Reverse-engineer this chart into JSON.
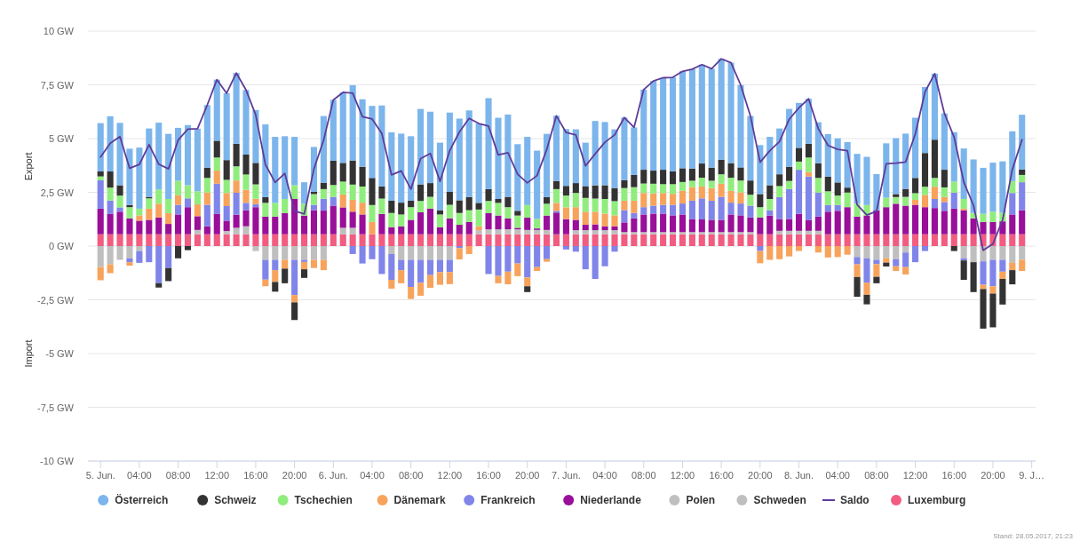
{
  "chart_data": {
    "type": "bar",
    "stacked": true,
    "ylabel": "Export",
    "annotations": [
      "Import",
      "Stand: 28.05.2017, 21:23"
    ],
    "x": [
      "2017-06-05T00:00",
      "2017-06-05T01:00",
      "2017-06-05T02:00",
      "2017-06-05T03:00",
      "2017-06-05T04:00",
      "2017-06-05T05:00",
      "2017-06-05T06:00",
      "2017-06-05T07:00",
      "2017-06-05T08:00",
      "2017-06-05T09:00",
      "2017-06-05T10:00",
      "2017-06-05T11:00",
      "2017-06-05T12:00",
      "2017-06-05T13:00",
      "2017-06-05T14:00",
      "2017-06-05T15:00",
      "2017-06-05T16:00",
      "2017-06-05T17:00",
      "2017-06-05T18:00",
      "2017-06-05T19:00",
      "2017-06-05T20:00",
      "2017-06-05T21:00",
      "2017-06-05T22:00",
      "2017-06-05T23:00",
      "2017-06-06T00:00",
      "2017-06-06T01:00",
      "2017-06-06T02:00",
      "2017-06-06T03:00",
      "2017-06-06T04:00",
      "2017-06-06T05:00",
      "2017-06-06T06:00",
      "2017-06-06T07:00",
      "2017-06-06T08:00",
      "2017-06-06T09:00",
      "2017-06-06T10:00",
      "2017-06-06T11:00",
      "2017-06-06T12:00",
      "2017-06-06T13:00",
      "2017-06-06T14:00",
      "2017-06-06T15:00",
      "2017-06-06T16:00",
      "2017-06-06T17:00",
      "2017-06-06T18:00",
      "2017-06-06T19:00",
      "2017-06-06T20:00",
      "2017-06-06T21:00",
      "2017-06-06T22:00",
      "2017-06-06T23:00",
      "2017-06-07T00:00",
      "2017-06-07T01:00",
      "2017-06-07T02:00",
      "2017-06-07T03:00",
      "2017-06-07T04:00",
      "2017-06-07T05:00",
      "2017-06-07T06:00",
      "2017-06-07T07:00",
      "2017-06-07T08:00",
      "2017-06-07T09:00",
      "2017-06-07T10:00",
      "2017-06-07T11:00",
      "2017-06-07T12:00",
      "2017-06-07T13:00",
      "2017-06-07T14:00",
      "2017-06-07T15:00",
      "2017-06-07T16:00",
      "2017-06-07T17:00",
      "2017-06-07T18:00",
      "2017-06-07T19:00",
      "2017-06-07T20:00",
      "2017-06-07T21:00",
      "2017-06-07T22:00",
      "2017-06-07T23:00",
      "2017-06-08T00:00",
      "2017-06-08T01:00",
      "2017-06-08T02:00",
      "2017-06-08T03:00",
      "2017-06-08T04:00",
      "2017-06-08T05:00",
      "2017-06-08T06:00",
      "2017-06-08T07:00",
      "2017-06-08T08:00",
      "2017-06-08T09:00",
      "2017-06-08T10:00",
      "2017-06-08T11:00",
      "2017-06-08T12:00",
      "2017-06-08T13:00",
      "2017-06-08T14:00",
      "2017-06-08T15:00",
      "2017-06-08T16:00",
      "2017-06-08T17:00",
      "2017-06-08T18:00",
      "2017-06-08T19:00",
      "2017-06-08T20:00",
      "2017-06-08T21:00",
      "2017-06-08T22:00",
      "2017-06-08T23:00"
    ],
    "xlim": [
      "2017-06-04T22:42",
      "2017-06-09T00:24"
    ],
    "xticks": [
      {
        "value": "2017-06-05T00:00",
        "label": "5. Jun."
      },
      {
        "value": "2017-06-05T04:00",
        "label": "04:00"
      },
      {
        "value": "2017-06-05T08:00",
        "label": "08:00"
      },
      {
        "value": "2017-06-05T12:00",
        "label": "12:00"
      },
      {
        "value": "2017-06-05T16:00",
        "label": "16:00"
      },
      {
        "value": "2017-06-05T20:00",
        "label": "20:00"
      },
      {
        "value": "2017-06-06T00:00",
        "label": "6. Jun."
      },
      {
        "value": "2017-06-06T04:00",
        "label": "04:00"
      },
      {
        "value": "2017-06-06T08:00",
        "label": "08:00"
      },
      {
        "value": "2017-06-06T12:00",
        "label": "12:00"
      },
      {
        "value": "2017-06-06T16:00",
        "label": "16:00"
      },
      {
        "value": "2017-06-06T20:00",
        "label": "20:00"
      },
      {
        "value": "2017-06-07T00:00",
        "label": "7. Jun."
      },
      {
        "value": "2017-06-07T04:00",
        "label": "04:00"
      },
      {
        "value": "2017-06-07T08:00",
        "label": "08:00"
      },
      {
        "value": "2017-06-07T12:00",
        "label": "12:00"
      },
      {
        "value": "2017-06-07T16:00",
        "label": "16:00"
      },
      {
        "value": "2017-06-07T20:00",
        "label": "20:00"
      },
      {
        "value": "2017-06-08T00:00",
        "label": "8. Jun."
      },
      {
        "value": "2017-06-08T04:00",
        "label": "04:00"
      },
      {
        "value": "2017-06-08T08:00",
        "label": "08:00"
      },
      {
        "value": "2017-06-08T12:00",
        "label": "12:00"
      },
      {
        "value": "2017-06-08T16:00",
        "label": "16:00"
      },
      {
        "value": "2017-06-08T20:00",
        "label": "20:00"
      },
      {
        "value": "2017-06-09T00:00",
        "label": "9. J…"
      }
    ],
    "ylim": [
      -10,
      10
    ],
    "yticks": [
      {
        "value": -10,
        "label": "-10 GW"
      },
      {
        "value": -7.5,
        "label": "-7,5 GW"
      },
      {
        "value": -5,
        "label": "-5 GW"
      },
      {
        "value": -2.5,
        "label": "-2,5 GW"
      },
      {
        "value": 0,
        "label": "0 GW"
      },
      {
        "value": 2.5,
        "label": "2,5 GW"
      },
      {
        "value": 5,
        "label": "5 GW"
      },
      {
        "value": 7.5,
        "label": "7,5 GW"
      },
      {
        "value": 10,
        "label": "10 GW"
      }
    ],
    "grid": "y",
    "legend": "bottom",
    "series": [
      {
        "name": "Luxemburg",
        "color": "#f15c80",
        "values": [
          0.55,
          0.55,
          0.55,
          0.55,
          0.55,
          0.55,
          0.55,
          0.55,
          0.55,
          0.55,
          0.55,
          0.55,
          0.55,
          0.55,
          0.55,
          0.55,
          0.55,
          0.55,
          0.55,
          0.55,
          0.55,
          0.55,
          0.55,
          0.55,
          0.55,
          0.55,
          0.55,
          0.55,
          0.55,
          0.55,
          0.55,
          0.55,
          0.55,
          0.55,
          0.55,
          0.55,
          0.55,
          0.55,
          0.55,
          0.55,
          0.55,
          0.55,
          0.55,
          0.55,
          0.55,
          0.55,
          0.55,
          0.55,
          0.55,
          0.55,
          0.55,
          0.55,
          0.55,
          0.55,
          0.55,
          0.55,
          0.55,
          0.55,
          0.55,
          0.55,
          0.55,
          0.55,
          0.55,
          0.55,
          0.55,
          0.55,
          0.55,
          0.55,
          0.55,
          0.55,
          0.55,
          0.55,
          0.55,
          0.55,
          0.55,
          0.55,
          0.55,
          0.55,
          0.55,
          0.55,
          0.55,
          0.55,
          0.55,
          0.55,
          0.55,
          0.55,
          0.55,
          0.55,
          0.55,
          0.55,
          0.55,
          0.55,
          0.55,
          0.55,
          0.55,
          0.55
        ]
      },
      {
        "name": "Saldo",
        "type": "line",
        "color": "#5e3c99",
        "values": [
          4.14,
          4.78,
          5.09,
          3.62,
          3.8,
          4.72,
          3.81,
          3.59,
          4.93,
          5.44,
          5.46,
          6.56,
          7.74,
          7.11,
          8.05,
          7.26,
          6.1,
          3.79,
          2.96,
          3.38,
          1.64,
          1.49,
          3.59,
          4.93,
          6.8,
          7.15,
          7.11,
          6.02,
          5.91,
          5.24,
          3.31,
          3.5,
          2.65,
          4.07,
          4.31,
          3.01,
          4.44,
          5.31,
          5.94,
          5.7,
          5.58,
          4.24,
          4.34,
          3.34,
          2.94,
          3.28,
          4.49,
          6.06,
          5.28,
          5.17,
          3.73,
          4.29,
          4.83,
          5.17,
          5.98,
          5.52,
          7.28,
          7.68,
          7.83,
          7.85,
          8.13,
          8.23,
          8.44,
          8.25,
          8.71,
          8.53,
          7.49,
          6.05,
          3.9,
          4.44,
          4.86,
          5.9,
          6.43,
          6.85,
          5.46,
          4.68,
          4.5,
          4.44,
          1.93,
          1.44,
          1.62,
          3.83,
          3.86,
          3.91,
          5.22,
          7.17,
          8.02,
          6.17,
          5.07,
          2.97,
          1.89,
          -0.2,
          0.1,
          1.22,
          3.56,
          4.95
        ]
      },
      {
        "name": "Schweden",
        "color": "#bfbfbf",
        "values": [
          0,
          0,
          0,
          0,
          0,
          0,
          0,
          0,
          0,
          0,
          0.2,
          0,
          0,
          0.15,
          0.3,
          0.37,
          0,
          0,
          0,
          0,
          0,
          0,
          0,
          0,
          0,
          0.3,
          0.3,
          0,
          0,
          0,
          0,
          0,
          0,
          0,
          0,
          0,
          0,
          0,
          0,
          0.19,
          0.23,
          0.23,
          0.23,
          0.23,
          0.2,
          0.2,
          0.2,
          0,
          0,
          0.19,
          0.19,
          0.19,
          0.19,
          0.19,
          0.1,
          0.1,
          0.1,
          0.1,
          0.1,
          0.1,
          0.1,
          0.1,
          0.1,
          0.1,
          0.1,
          0.1,
          0.1,
          0.1,
          0,
          0,
          0.16,
          0.16,
          0.16,
          0.16,
          0.16,
          0,
          0,
          0,
          0,
          0,
          0,
          0,
          0,
          0,
          0,
          0,
          0,
          0,
          0,
          0,
          0,
          0,
          0,
          0,
          0,
          0
        ]
      },
      {
        "name": "Polen",
        "color": "#bfbfbf",
        "values": [
          -0.98,
          -0.85,
          -0.64,
          -0.57,
          -0.23,
          0,
          0,
          0,
          0,
          0,
          0,
          0,
          0,
          0,
          0,
          0,
          -0.23,
          -0.64,
          -0.64,
          -0.64,
          -0.64,
          -0.64,
          -0.64,
          -0.64,
          0,
          0,
          0,
          0,
          0,
          0,
          -0.37,
          -0.64,
          -0.64,
          -0.64,
          -0.64,
          -0.64,
          -0.64,
          0,
          0,
          0,
          0,
          0,
          0,
          0,
          0,
          0,
          0,
          0,
          0,
          0,
          0,
          0,
          0,
          0,
          0,
          0,
          0,
          0,
          0,
          0,
          0,
          0,
          0,
          0,
          0,
          0,
          0,
          0,
          0,
          0,
          0,
          0,
          0,
          0,
          0,
          0,
          0,
          0,
          -0.51,
          -0.57,
          -0.64,
          -0.57,
          -0.61,
          -0.3,
          0,
          0,
          0,
          0,
          0,
          -0.57,
          -0.75,
          -0.71,
          -0.64,
          -0.64,
          -0.78,
          -0.64
        ]
      },
      {
        "name": "Niederlande",
        "color": "#990f99",
        "values": [
          1.19,
          0.94,
          1.05,
          0.74,
          0.63,
          0.67,
          0.78,
          0.48,
          0.92,
          1.26,
          0.64,
          0.37,
          0.94,
          0.48,
          0.61,
          0.75,
          1.26,
          0.82,
          0.82,
          0.98,
          1.64,
          0.87,
          1.12,
          1.1,
          1.33,
          0.95,
          0.75,
          0.92,
          0,
          0.94,
          0.33,
          0.37,
          0.67,
          1.02,
          1.19,
          0.33,
          0.74,
          0.44,
          0.57,
          0,
          0.75,
          0.64,
          0.51,
          0.07,
          0.57,
          0.07,
          0.67,
          1.01,
          0.7,
          0.48,
          0.25,
          0.27,
          0.18,
          0.18,
          0.45,
          0.64,
          0.82,
          0.86,
          0.86,
          0.78,
          0.82,
          0.61,
          0.59,
          0.57,
          0.57,
          0.82,
          0.78,
          0.68,
          0.78,
          0.87,
          0.55,
          0.55,
          0.79,
          0.51,
          0.66,
          1.05,
          1.09,
          1.26,
          0.82,
          0.87,
          1.12,
          1.26,
          1.42,
          1.33,
          1.37,
          1.26,
          1.22,
          1.09,
          1.19,
          1.12,
          0.74,
          0.57,
          0.57,
          0.6,
          0.92,
          1.12
        ]
      },
      {
        "name": "Frankreich",
        "color": "#8085e9",
        "values": [
          1.32,
          0.63,
          0.2,
          -0.18,
          -0.55,
          -0.75,
          -1.73,
          -1.02,
          0.45,
          0.41,
          0,
          1.0,
          1.41,
          0.68,
          1.02,
          0.34,
          0.14,
          -0.92,
          -0.48,
          0,
          -1.64,
          -0.1,
          0.25,
          0.55,
          0.41,
          0,
          -0.37,
          -0.81,
          -0.61,
          -1.3,
          -1.2,
          -0.48,
          -1.26,
          -1.07,
          -0.71,
          -0.57,
          -0.57,
          -0.1,
          0,
          0,
          -1.3,
          -1.39,
          -1.19,
          -0.81,
          -1.46,
          -0.98,
          -0.61,
          0.08,
          -0.16,
          -0.26,
          -1.08,
          -1.53,
          -0.94,
          -0.26,
          0.57,
          0.25,
          0.34,
          0.37,
          0.41,
          0.49,
          0.51,
          0.85,
          0.98,
          0.89,
          1.07,
          0.55,
          0.55,
          0.55,
          -0.23,
          0.25,
          1.02,
          1.39,
          2.05,
          2.02,
          1.12,
          0.31,
          0.27,
          0,
          -0.34,
          -1.13,
          -0.2,
          0,
          -0.33,
          -0.68,
          -0.75,
          -0.23,
          0.42,
          0.41,
          0.75,
          -0.1,
          0,
          -1.09,
          -1.23,
          -0.55,
          1.0,
          1.3
        ]
      },
      {
        "name": "Dänemark",
        "color": "#f7a35c",
        "values": [
          -0.61,
          -0.41,
          0,
          -0.16,
          0.25,
          0.52,
          0.64,
          0.5,
          0.44,
          0,
          0.55,
          0.57,
          0.61,
          0.61,
          0.57,
          0.61,
          0.25,
          -0.31,
          -0.55,
          -0.41,
          -0.34,
          -0.34,
          -0.38,
          -0.48,
          0,
          0.6,
          0.55,
          0.55,
          0.57,
          0,
          -0.41,
          -0.61,
          -0.56,
          -0.6,
          -0.59,
          -0.59,
          -0.56,
          -0.52,
          -0.37,
          0.18,
          0,
          -0.34,
          -0.59,
          -0.59,
          -0.41,
          -0.18,
          -0.12,
          0.37,
          0.55,
          0.59,
          0.61,
          0.59,
          0.59,
          0.51,
          0.44,
          0.57,
          0.66,
          0.57,
          0.55,
          0.51,
          0.59,
          0.63,
          0.55,
          0.59,
          0.61,
          0.55,
          0.52,
          0,
          -0.57,
          -0.64,
          -0.61,
          -0.48,
          -0.23,
          0.2,
          -0.3,
          -0.53,
          -0.51,
          -0.4,
          -0.59,
          -0.57,
          -0.59,
          -0.2,
          -0.22,
          -0.34,
          0.23,
          0.57,
          0.57,
          0.23,
          0,
          0.07,
          0,
          -0.2,
          -0.34,
          -0.34,
          -0.34,
          -0.52
        ]
      },
      {
        "name": "Tschechien",
        "color": "#90ed7d",
        "values": [
          0.18,
          0.6,
          0.55,
          0.52,
          0.31,
          0.48,
          0.66,
          0.66,
          0.68,
          0.61,
          0.61,
          0.68,
          0.61,
          0.61,
          0.66,
          0.71,
          0.67,
          0.64,
          0.64,
          0.66,
          0.64,
          0.55,
          0.5,
          0.45,
          0.55,
          0.6,
          0.71,
          0.75,
          0.79,
          0.72,
          0.66,
          0.55,
          0.59,
          0.53,
          0.55,
          0.59,
          0.63,
          0.55,
          0.55,
          0.78,
          0.57,
          0.59,
          0.52,
          0.57,
          0.59,
          0.44,
          0.55,
          0.64,
          0.55,
          0.66,
          0.64,
          0.61,
          0.68,
          0.66,
          0.59,
          0.63,
          0.44,
          0.45,
          0.41,
          0.45,
          0.41,
          0.3,
          0.41,
          0.34,
          0.44,
          0.61,
          0.55,
          0.51,
          0.48,
          0.52,
          0.51,
          0.38,
          0.38,
          0.68,
          0.68,
          0.64,
          0.44,
          0.68,
          0.6,
          0.49,
          0,
          0.44,
          0.31,
          0.41,
          0.31,
          0.38,
          0.41,
          0.45,
          0.51,
          0.45,
          0.25,
          0.38,
          0.48,
          0.4,
          0.55,
          0.34
        ]
      },
      {
        "name": "Schweiz",
        "color": "#333333",
        "values": [
          0.23,
          0.75,
          0.48,
          0.1,
          0,
          0.07,
          -0.2,
          -0.61,
          -0.57,
          -0.19,
          0,
          0.48,
          0.78,
          0.92,
          1.05,
          0.93,
          1.0,
          0.27,
          -0.45,
          -0.68,
          -0.82,
          -0.4,
          0.1,
          0.3,
          1.13,
          0.87,
          1.12,
          0.92,
          1.26,
          0.57,
          0.57,
          0.55,
          0.3,
          0.77,
          0.64,
          0.2,
          0.6,
          0.59,
          0.61,
          0.31,
          0.55,
          0.18,
          0.48,
          0.22,
          -0.27,
          0,
          0.31,
          0.38,
          0.45,
          0.46,
          0.55,
          0.61,
          0.64,
          0.61,
          0.37,
          0.57,
          0.64,
          0.61,
          0.67,
          0.6,
          0.64,
          0.57,
          0.66,
          0.61,
          0.68,
          0.68,
          0.61,
          0.66,
          0.61,
          0.64,
          0.55,
          0.66,
          0.64,
          0.64,
          0.68,
          0.68,
          0.61,
          0.23,
          -0.92,
          -0.44,
          -0.3,
          -0.18,
          0.14,
          0.37,
          0.71,
          1.57,
          1.78,
          0.82,
          -0.23,
          -0.9,
          -1.39,
          -1.84,
          -1.57,
          -1.19,
          -0.66,
          0.25
        ]
      },
      {
        "name": "Österreich",
        "color": "#7cb5ec",
        "values": [
          2.25,
          2.57,
          2.9,
          2.62,
          2.84,
          3.18,
          3.11,
          3.03,
          2.46,
          2.8,
          2.91,
          2.91,
          2.84,
          3.11,
          3.29,
          3.0,
          2.46,
          3.38,
          3.07,
          2.92,
          2.25,
          1.0,
          2.09,
          3.1,
          2.83,
          3.28,
          3.5,
          3.14,
          3.35,
          3.76,
          3.18,
          3.21,
          3.0,
          3.51,
          3.32,
          3.14,
          3.69,
          3.8,
          4.03,
          3.69,
          4.23,
          3.78,
          3.83,
          3.1,
          3.17,
          3.18,
          2.94,
          3.03,
          2.64,
          2.5,
          2.02,
          3.0,
          2.94,
          2.73,
          2.91,
          2.21,
          3.73,
          4.17,
          4.28,
          4.37,
          4.51,
          4.62,
          4.6,
          4.6,
          4.69,
          4.67,
          3.83,
          3.0,
          2.28,
          2.25,
          2.13,
          2.69,
          2.09,
          2.09,
          1.91,
          1.98,
          2.05,
          2.12,
          2.32,
          2.24,
          1.68,
          2.53,
          2.6,
          2.57,
          2.8,
          3.07,
          3.07,
          2.62,
          2.3,
          2.35,
          2.49,
          2.14,
          2.28,
          2.39,
          2.32,
          2.55
        ]
      }
    ]
  }
}
